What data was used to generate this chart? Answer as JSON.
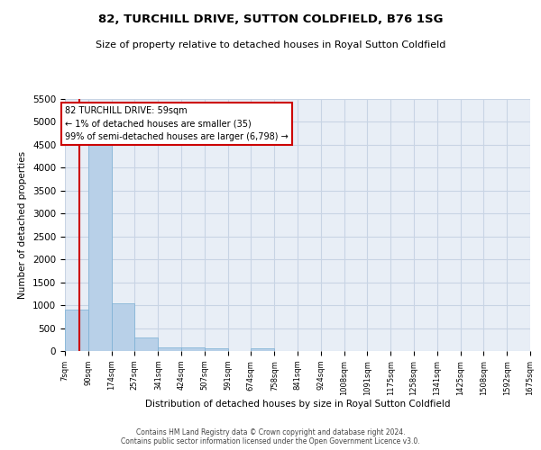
{
  "title": "82, TURCHILL DRIVE, SUTTON COLDFIELD, B76 1SG",
  "subtitle": "Size of property relative to detached houses in Royal Sutton Coldfield",
  "xlabel": "Distribution of detached houses by size in Royal Sutton Coldfield",
  "ylabel": "Number of detached properties",
  "footer_line1": "Contains HM Land Registry data © Crown copyright and database right 2024.",
  "footer_line2": "Contains public sector information licensed under the Open Government Licence v3.0.",
  "bar_color": "#b8d0e8",
  "bar_edge_color": "#7aafd4",
  "grid_color": "#c8d4e4",
  "annotation_text": "82 TURCHILL DRIVE: 59sqm\n← 1% of detached houses are smaller (35)\n99% of semi-detached houses are larger (6,798) →",
  "property_size": 59,
  "red_line_color": "#cc0000",
  "annotation_box_color": "#cc0000",
  "ylim": [
    0,
    5500
  ],
  "yticks": [
    0,
    500,
    1000,
    1500,
    2000,
    2500,
    3000,
    3500,
    4000,
    4500,
    5000,
    5500
  ],
  "bin_edges": [
    7,
    90,
    174,
    257,
    341,
    424,
    507,
    591,
    674,
    758,
    841,
    924,
    1008,
    1091,
    1175,
    1258,
    1341,
    1425,
    1508,
    1592,
    1675
  ],
  "bar_heights": [
    900,
    4550,
    1050,
    290,
    80,
    70,
    60,
    0,
    60,
    0,
    0,
    0,
    0,
    0,
    0,
    0,
    0,
    0,
    0,
    0
  ],
  "tick_labels": [
    "7sqm",
    "90sqm",
    "174sqm",
    "257sqm",
    "341sqm",
    "424sqm",
    "507sqm",
    "591sqm",
    "674sqm",
    "758sqm",
    "841sqm",
    "924sqm",
    "1008sqm",
    "1091sqm",
    "1175sqm",
    "1258sqm",
    "1341sqm",
    "1425sqm",
    "1508sqm",
    "1592sqm",
    "1675sqm"
  ],
  "background_color": "#ffffff",
  "plot_bg_color": "#e8eef6"
}
